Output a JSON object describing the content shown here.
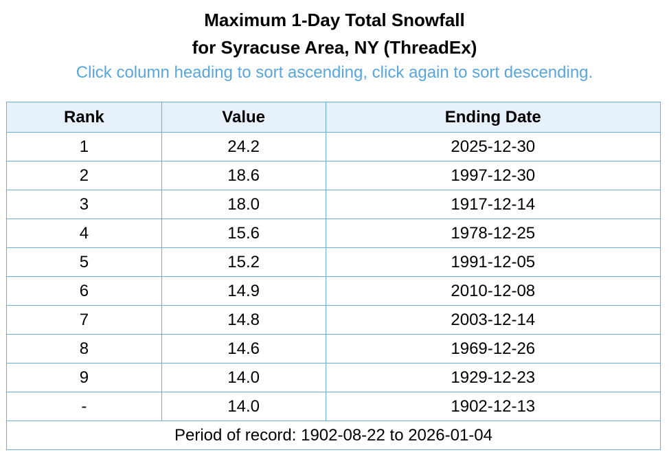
{
  "header": {
    "title": [
      "Maximum 1-Day Total Snowfall",
      "for Syracuse Area, NY (ThreadEx)"
    ],
    "subtitle": "Click column heading to sort ascending, click again to sort descending."
  },
  "table": {
    "columns": [
      "Rank",
      "Value",
      "Ending Date"
    ],
    "rows": [
      [
        "1",
        "24.2",
        "2025-12-30"
      ],
      [
        "2",
        "18.6",
        "1997-12-30"
      ],
      [
        "3",
        "18.0",
        "1917-12-14"
      ],
      [
        "4",
        "15.6",
        "1978-12-25"
      ],
      [
        "5",
        "15.2",
        "1991-12-05"
      ],
      [
        "6",
        "14.9",
        "2010-12-08"
      ],
      [
        "7",
        "14.8",
        "2003-12-14"
      ],
      [
        "8",
        "14.6",
        "1969-12-26"
      ],
      [
        "9",
        "14.0",
        "1929-12-23"
      ],
      [
        "-",
        "14.0",
        "1902-12-13"
      ]
    ],
    "footer": "Period of record: 1902-08-22 to 2026-01-04"
  }
}
